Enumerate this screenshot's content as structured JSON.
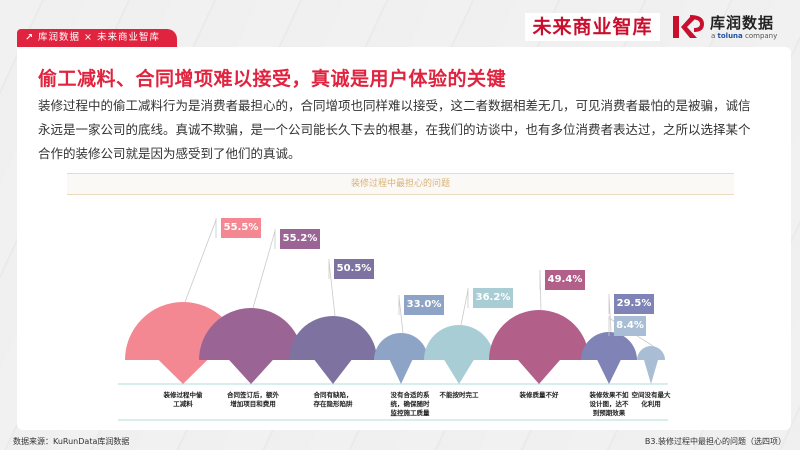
{
  "header": {
    "tag_label": "库润数据 × 未来商业智库",
    "tag_icon": "arrow-up-right-icon",
    "logo_left": "未来商业智库",
    "logo_right_cn": "库润数据",
    "logo_right_en_prefix": "a ",
    "logo_right_en_brand": "toluna",
    "logo_right_en_suffix": " company"
  },
  "main": {
    "title": "偷工减料、合同增项难以接受，真诚是用户体验的关键",
    "description": "装修过程中的偷工减料行为是消费者最担心的，合同增项也同样难以接受，这二者数据相差无几，可见消费者最怕的是被骗，诚信永远是一家公司的底线。真诚不欺骗，是一个公司能长久下去的根基，在我们的访谈中，也有多位消费者表达过，之所以选择某个合作的装修公司就是因为感受到了他们的真诚。"
  },
  "chart_data": {
    "type": "bar",
    "title": "装修过程中最担心的问题",
    "xlabel": "",
    "ylabel": "",
    "unit": "%",
    "categories": [
      "装修过程中偷工减料",
      "合同签订后，额外增加项目和费用",
      "合同有缺陷，存在隐形陷阱",
      "没有合适的系统，确保随时监控施工质量",
      "不能按时完工",
      "装修质量不好",
      "装修效果不如设计图，达不到预期效果",
      "空间没有最大化利用"
    ],
    "category_lines": [
      [
        "装修过程中偷",
        "工减料"
      ],
      [
        "合同签订后，额外",
        "增加项目和费用"
      ],
      [
        "合同有缺陷，",
        "存在隐形陷阱"
      ],
      [
        "没有合适的系",
        "统，确保随时",
        "监控施工质量"
      ],
      [
        "不能按时完工"
      ],
      [
        "装修质量不好"
      ],
      [
        "装修效果不如",
        "设计图，达不",
        "到预期效果"
      ],
      [
        "空间没有最大",
        "化利用"
      ]
    ],
    "values": [
      55.5,
      55.2,
      50.5,
      33.0,
      36.2,
      49.4,
      29.5,
      8.4
    ],
    "labels": [
      "55.5%",
      "55.2%",
      "50.5%",
      "33.0%",
      "36.2%",
      "49.4%",
      "29.5%",
      "8.4%"
    ],
    "colors": [
      "#f48892",
      "#9a6594",
      "#7e72a0",
      "#8ea4c6",
      "#a9cdd4",
      "#b25f8a",
      "#7f83b5",
      "#a9bed5"
    ],
    "grid": false,
    "legend": "none"
  },
  "footer": {
    "source": "数据来源：KuRunData库润数据",
    "question": "B3.装修过程中最担心的问题（选四项）"
  }
}
